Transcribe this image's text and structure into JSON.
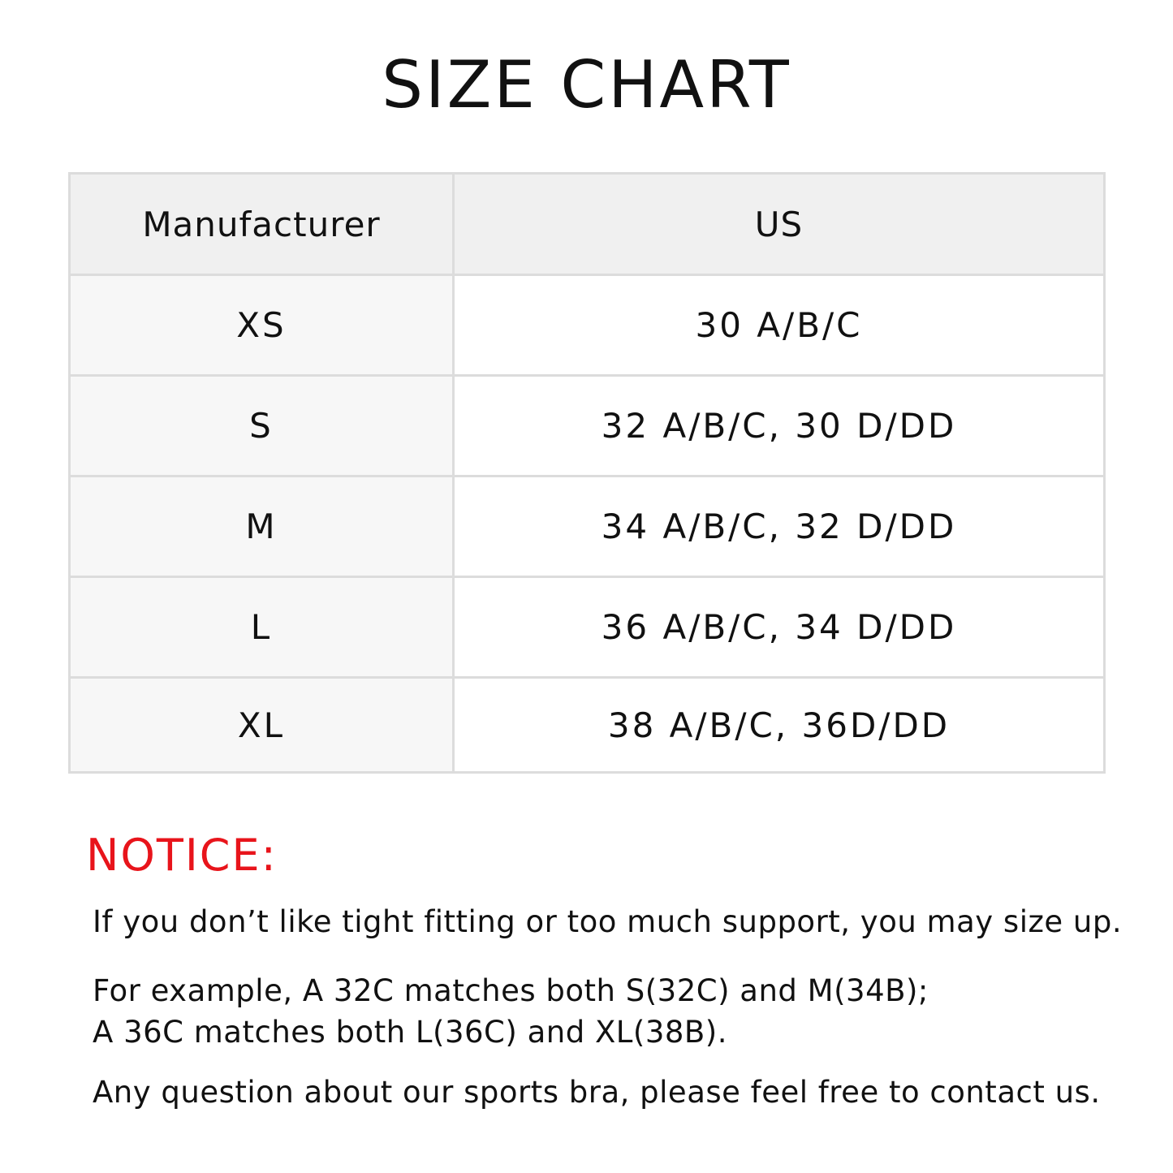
{
  "title": "SIZE CHART",
  "table": {
    "headers": [
      "Manufacturer",
      "US"
    ],
    "rows": [
      [
        "XS",
        "30 A/B/C"
      ],
      [
        "S",
        "32 A/B/C, 30 D/DD"
      ],
      [
        "M",
        "34 A/B/C, 32 D/DD"
      ],
      [
        "L",
        "36 A/B/C, 34 D/DD"
      ],
      [
        "XL",
        "38 A/B/C, 36D/DD"
      ]
    ]
  },
  "notice": {
    "heading": "NOTICE:",
    "color": "#e8141b",
    "lines": [
      "If you don’t like tight fitting or too much support, you may size up.",
      "For example,  A 32C matches both S(32C) and M(34B);",
      "A 36C matches both L(36C) and XL(38B).",
      "Any question about our sports bra, please feel free to contact us."
    ]
  }
}
